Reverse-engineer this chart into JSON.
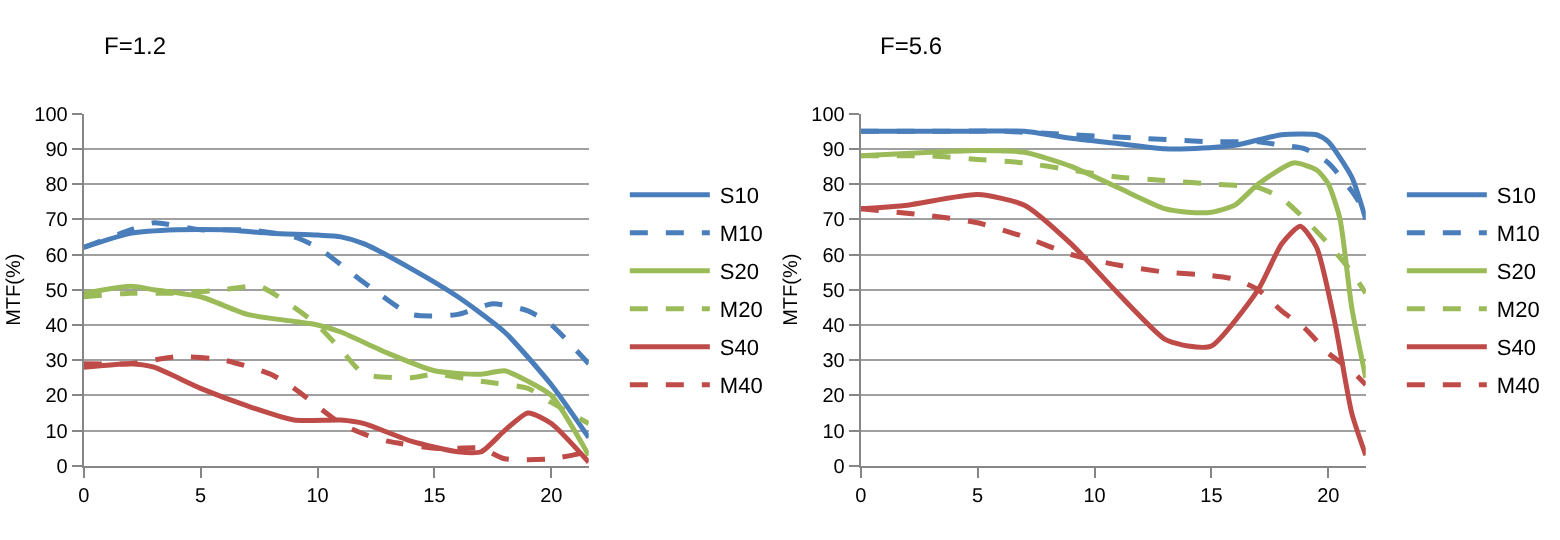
{
  "chart_data": [
    {
      "type": "line",
      "title": "F=1.2",
      "ylabel": "MTF(%)",
      "xlim": [
        0,
        21.6
      ],
      "xticks": [
        0,
        5,
        10,
        15,
        20
      ],
      "ylim": [
        0,
        100
      ],
      "yticks": [
        0,
        10,
        20,
        30,
        40,
        50,
        60,
        70,
        80,
        90,
        100
      ],
      "grid": "y",
      "legend": "right",
      "marker": "none",
      "series": [
        {
          "name": "S10",
          "color": "#4a7ebb",
          "line_style": "solid",
          "x": [
            0,
            2,
            4,
            6,
            8,
            10,
            11,
            12,
            14,
            16,
            18,
            20,
            21.6
          ],
          "values": [
            62,
            66,
            67,
            67,
            66,
            65.5,
            65,
            63,
            56,
            48,
            38,
            23,
            8
          ]
        },
        {
          "name": "M10",
          "color": "#4a7ebb",
          "line_style": "dashed",
          "x": [
            0,
            2,
            3,
            5,
            7,
            9,
            10,
            12,
            14,
            16,
            17.5,
            19,
            20,
            21.6
          ],
          "values": [
            62,
            67,
            69,
            67,
            67,
            65,
            62,
            52,
            43,
            43,
            46,
            44,
            40,
            29
          ]
        },
        {
          "name": "S20",
          "color": "#9bbb59",
          "line_style": "solid",
          "x": [
            0,
            2,
            3,
            5,
            7,
            9,
            10,
            11,
            13,
            15,
            17,
            18,
            19,
            20,
            21.6
          ],
          "values": [
            49,
            51,
            50,
            48,
            43,
            41,
            40,
            38,
            32,
            27,
            26,
            27,
            24,
            20,
            3
          ]
        },
        {
          "name": "M20",
          "color": "#9bbb59",
          "line_style": "dashed",
          "x": [
            0,
            2,
            4,
            6,
            7.5,
            9,
            10,
            11,
            12,
            14,
            15,
            17,
            19,
            20,
            21.6
          ],
          "values": [
            48,
            49,
            49,
            50,
            51,
            45,
            40,
            33,
            26,
            25,
            26,
            24,
            22,
            18,
            12
          ]
        },
        {
          "name": "S40",
          "color": "#be4b48",
          "line_style": "solid",
          "x": [
            0,
            2,
            3,
            5,
            7,
            9,
            11,
            12,
            14,
            16,
            17,
            18,
            19,
            20,
            21.6
          ],
          "values": [
            28,
            29,
            28,
            22,
            17,
            13,
            13,
            12,
            7,
            4,
            4,
            10,
            15,
            12,
            1
          ]
        },
        {
          "name": "M40",
          "color": "#be4b48",
          "line_style": "dashed",
          "x": [
            0,
            2,
            4,
            6,
            8,
            9,
            11,
            12,
            13,
            15,
            16,
            17,
            18,
            20,
            21.6
          ],
          "values": [
            29,
            29,
            31,
            30,
            26,
            22,
            12,
            9,
            7,
            5,
            5,
            5,
            2,
            2,
            4
          ]
        }
      ]
    },
    {
      "type": "line",
      "title": "F=5.6",
      "ylabel": "MTF(%)",
      "xlim": [
        0,
        21.6
      ],
      "xticks": [
        0,
        5,
        10,
        15,
        20
      ],
      "ylim": [
        0,
        100
      ],
      "yticks": [
        0,
        10,
        20,
        30,
        40,
        50,
        60,
        70,
        80,
        90,
        100
      ],
      "grid": "y",
      "legend": "right",
      "marker": "none",
      "series": [
        {
          "name": "S10",
          "color": "#4a7ebb",
          "line_style": "solid",
          "x": [
            0,
            5,
            7,
            9,
            11,
            13,
            14,
            16,
            18,
            19.5,
            20,
            21,
            21.6
          ],
          "values": [
            95,
            95,
            95,
            93,
            91.5,
            90,
            90,
            91,
            94,
            94,
            92,
            82,
            70
          ]
        },
        {
          "name": "M10",
          "color": "#4a7ebb",
          "line_style": "dashed",
          "x": [
            0,
            3,
            6,
            9,
            12,
            15,
            17,
            18,
            19,
            20,
            21,
            21.6
          ],
          "values": [
            95,
            95,
            95,
            94,
            93,
            92,
            92,
            91,
            90,
            86,
            78,
            72
          ]
        },
        {
          "name": "S20",
          "color": "#9bbb59",
          "line_style": "solid",
          "x": [
            0,
            3,
            5,
            7,
            9,
            11,
            13,
            14,
            15,
            16,
            17,
            18.5,
            19.5,
            20,
            20.5,
            21,
            21.6
          ],
          "values": [
            88,
            89,
            89.5,
            89,
            85,
            79,
            73,
            72,
            72,
            74,
            80,
            86,
            84,
            80,
            70,
            45,
            25
          ]
        },
        {
          "name": "M20",
          "color": "#9bbb59",
          "line_style": "dashed",
          "x": [
            0,
            3,
            5,
            7,
            9,
            11,
            13,
            15,
            17,
            18,
            19,
            20,
            21,
            21.6
          ],
          "values": [
            88,
            88,
            87,
            86,
            84,
            82,
            81,
            80,
            79,
            76,
            70,
            63,
            55,
            49
          ]
        },
        {
          "name": "S40",
          "color": "#be4b48",
          "line_style": "solid",
          "x": [
            0,
            2,
            5,
            7,
            9,
            11,
            13,
            14,
            15,
            17,
            18,
            18.8,
            19.5,
            20.3,
            21,
            21.6
          ],
          "values": [
            73,
            74,
            77,
            74,
            63,
            49,
            36,
            34,
            34,
            50,
            63,
            68,
            62,
            40,
            15,
            3
          ]
        },
        {
          "name": "M40",
          "color": "#be4b48",
          "line_style": "dashed",
          "x": [
            0,
            3,
            5,
            7,
            9,
            11,
            13,
            15,
            16,
            17,
            18,
            19,
            20,
            21,
            21.6
          ],
          "values": [
            73,
            71,
            69,
            65,
            60,
            57,
            55,
            54,
            53,
            50,
            44,
            39,
            32,
            27,
            23
          ]
        }
      ]
    }
  ]
}
